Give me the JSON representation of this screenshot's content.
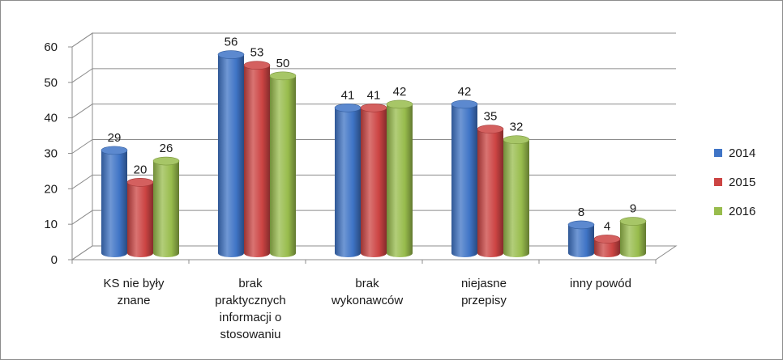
{
  "chart_data": {
    "type": "bar",
    "style": "3d-clustered-cylinder",
    "categories": [
      [
        "KS nie były",
        "znane"
      ],
      [
        "brak",
        "praktycznych",
        "informacji o",
        "stosowaniu"
      ],
      [
        "brak",
        "wykonawców"
      ],
      [
        "niejasne",
        "przepisy"
      ],
      [
        "inny powód"
      ]
    ],
    "series": [
      {
        "name": "2014",
        "color": "#3f74c6",
        "values": [
          29,
          56,
          41,
          42,
          8
        ]
      },
      {
        "name": "2015",
        "color": "#cc4443",
        "values": [
          20,
          53,
          41,
          35,
          4
        ]
      },
      {
        "name": "2016",
        "color": "#98bc4c",
        "values": [
          26,
          50,
          42,
          32,
          9
        ]
      }
    ],
    "ylim": [
      0,
      60
    ],
    "yticks": [
      0,
      10,
      20,
      30,
      40,
      50,
      60
    ],
    "grid": true,
    "legend_position": "right",
    "data_labels": true
  }
}
